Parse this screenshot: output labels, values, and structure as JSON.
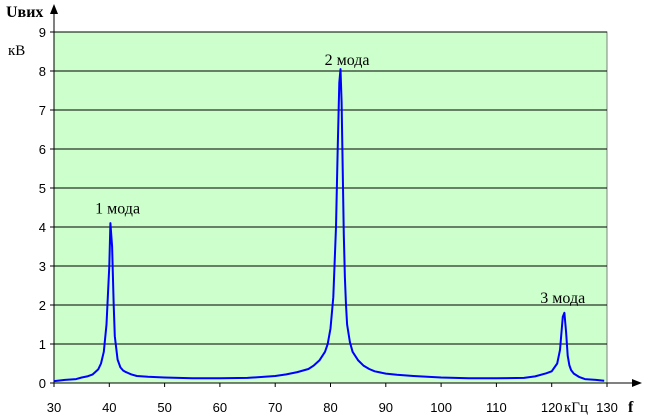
{
  "chart_data": {
    "type": "line",
    "ylabel": "Uвих",
    "yunit": "кВ",
    "xlabel": "f",
    "xunit": "кГц",
    "xlim": [
      30,
      130
    ],
    "ylim": [
      0,
      9
    ],
    "xticks": [
      30,
      40,
      50,
      60,
      70,
      80,
      90,
      100,
      110,
      120,
      130
    ],
    "yticks": [
      0,
      1,
      2,
      3,
      4,
      5,
      6,
      7,
      8,
      9
    ],
    "grid": "horizontal",
    "background_color": "#ccffcc",
    "line_color": "#0000ff",
    "annotations": [
      {
        "text": "1 мода",
        "x": 41.5,
        "y": 4.35
      },
      {
        "text": "2 мода",
        "x": 83.0,
        "y": 8.15
      },
      {
        "text": "3 мода",
        "x": 122.0,
        "y": 2.05
      }
    ],
    "series": [
      {
        "x": [
          30,
          32,
          34,
          35,
          36,
          37,
          38,
          38.5,
          39,
          39.5,
          40,
          40.2,
          40.5,
          40.8,
          41,
          41.5,
          42,
          42.5,
          43,
          44,
          45,
          47,
          50,
          55,
          60,
          65,
          70,
          72,
          74,
          76,
          77,
          78,
          79,
          79.5,
          80,
          80.5,
          81,
          81.3,
          81.6,
          81.8,
          82,
          82.2,
          82.4,
          82.6,
          82.8,
          83,
          83.5,
          84,
          85,
          86,
          87,
          88,
          90,
          92,
          95,
          100,
          105,
          110,
          115,
          117,
          119,
          120,
          121,
          121.5,
          122,
          122.3,
          122.6,
          122.9,
          123.2,
          123.5,
          124,
          125,
          126,
          128,
          129.5
        ],
        "y": [
          0.05,
          0.08,
          0.1,
          0.14,
          0.17,
          0.22,
          0.35,
          0.5,
          0.8,
          1.5,
          3.0,
          4.1,
          3.5,
          2.0,
          1.2,
          0.6,
          0.4,
          0.32,
          0.28,
          0.22,
          0.18,
          0.16,
          0.14,
          0.12,
          0.12,
          0.13,
          0.18,
          0.22,
          0.28,
          0.36,
          0.45,
          0.58,
          0.8,
          1.0,
          1.4,
          2.2,
          4.0,
          6.0,
          7.7,
          8.05,
          7.2,
          5.5,
          3.8,
          2.7,
          2.0,
          1.5,
          1.05,
          0.8,
          0.58,
          0.44,
          0.36,
          0.3,
          0.24,
          0.21,
          0.18,
          0.14,
          0.12,
          0.12,
          0.13,
          0.17,
          0.25,
          0.3,
          0.5,
          0.85,
          1.7,
          1.8,
          1.3,
          0.7,
          0.45,
          0.33,
          0.24,
          0.15,
          0.1,
          0.08,
          0.06
        ]
      }
    ]
  }
}
